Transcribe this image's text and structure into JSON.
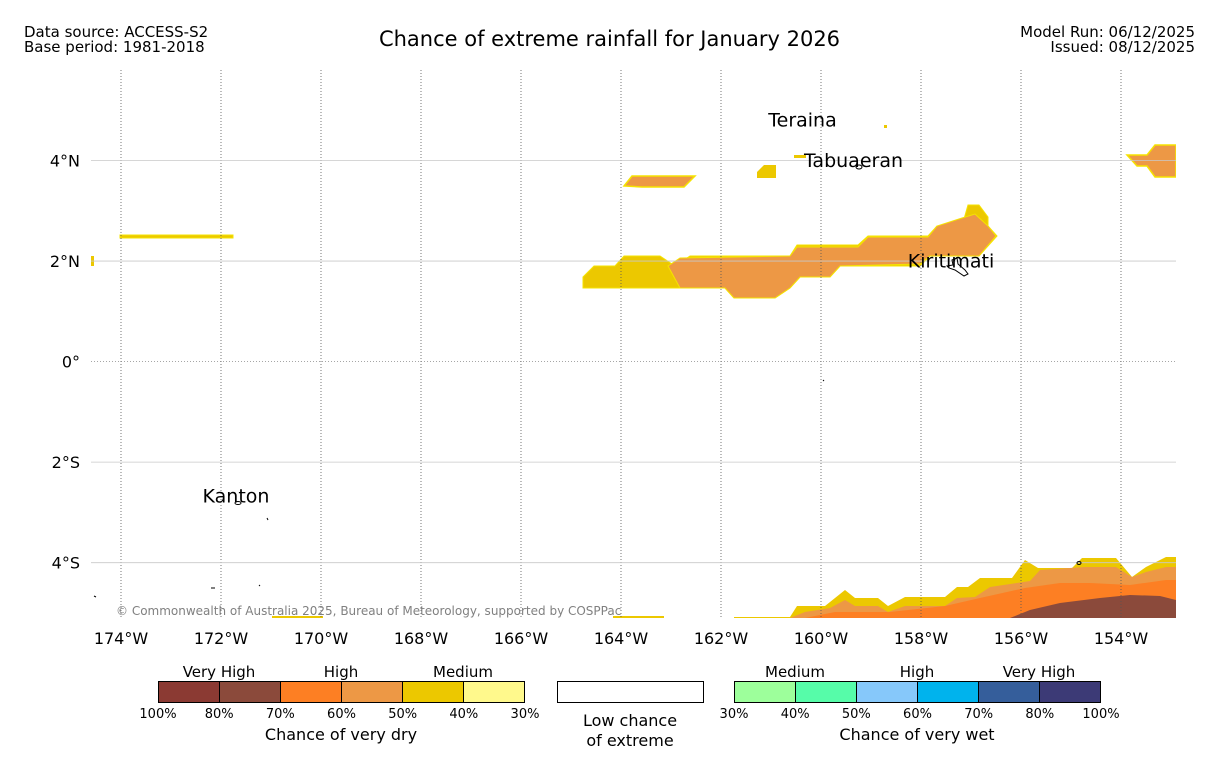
{
  "header": {
    "data_source": "Data source: ACCESS-S2",
    "base_period": "Base period: 1981-2018",
    "title": "Chance of extreme rainfall for January 2026",
    "model_run": "Model Run: 06/12/2025",
    "issued": "Issued: 08/12/2025"
  },
  "map": {
    "lon_range": [
      -174.6,
      -152.9
    ],
    "lat_range": [
      -5.1,
      5.8
    ],
    "lon_ticks": [
      {
        "value": -174,
        "label": "174°W"
      },
      {
        "value": -172,
        "label": "172°W"
      },
      {
        "value": -170,
        "label": "170°W"
      },
      {
        "value": -168,
        "label": "168°W"
      },
      {
        "value": -166,
        "label": "166°W"
      },
      {
        "value": -164,
        "label": "164°W"
      },
      {
        "value": -162,
        "label": "162°W"
      },
      {
        "value": -160,
        "label": "160°W"
      },
      {
        "value": -158,
        "label": "158°W"
      },
      {
        "value": -156,
        "label": "156°W"
      },
      {
        "value": -154,
        "label": "154°W"
      }
    ],
    "lat_ticks": [
      {
        "value": 4,
        "label": "4°N"
      },
      {
        "value": 2,
        "label": "2°N"
      },
      {
        "value": 0,
        "label": "0°"
      },
      {
        "value": -2,
        "label": "2°S"
      },
      {
        "value": -4,
        "label": "4°S"
      }
    ],
    "places": [
      {
        "name": "Teraina",
        "lon": -160.37,
        "lat": 4.68
      },
      {
        "name": "Tabuaeran",
        "lon": -159.35,
        "lat": 3.87
      },
      {
        "name": "Kiritimati",
        "lon": -157.4,
        "lat": 1.87
      },
      {
        "name": "Kanton",
        "lon": -171.7,
        "lat": -2.8
      }
    ],
    "copyright": "© Commonwealth of Australia 2025, Bureau of Meteorology, supported by COSPPac"
  },
  "legend": {
    "dry": {
      "heads": [
        "Very High",
        "High",
        "Medium"
      ],
      "colors": [
        "#8b3a33",
        "#8b4a3b",
        "#fd7f23",
        "#ed9845",
        "#ecc800",
        "#fff98c"
      ],
      "ticks": [
        "100%",
        "80%",
        "70%",
        "60%",
        "50%",
        "40%",
        "30%"
      ],
      "caption": "Chance of very dry"
    },
    "low": {
      "line1": "Low chance",
      "line2": "of extreme"
    },
    "wet": {
      "heads": [
        "Medium",
        "High",
        "Very High"
      ],
      "colors": [
        "#9dff9b",
        "#56fca9",
        "#86c8fa",
        "#00b3ed",
        "#355e9b",
        "#3c3a76"
      ],
      "ticks": [
        "30%",
        "40%",
        "50%",
        "60%",
        "70%",
        "80%",
        "100%"
      ],
      "caption": "Chance of very wet"
    }
  }
}
